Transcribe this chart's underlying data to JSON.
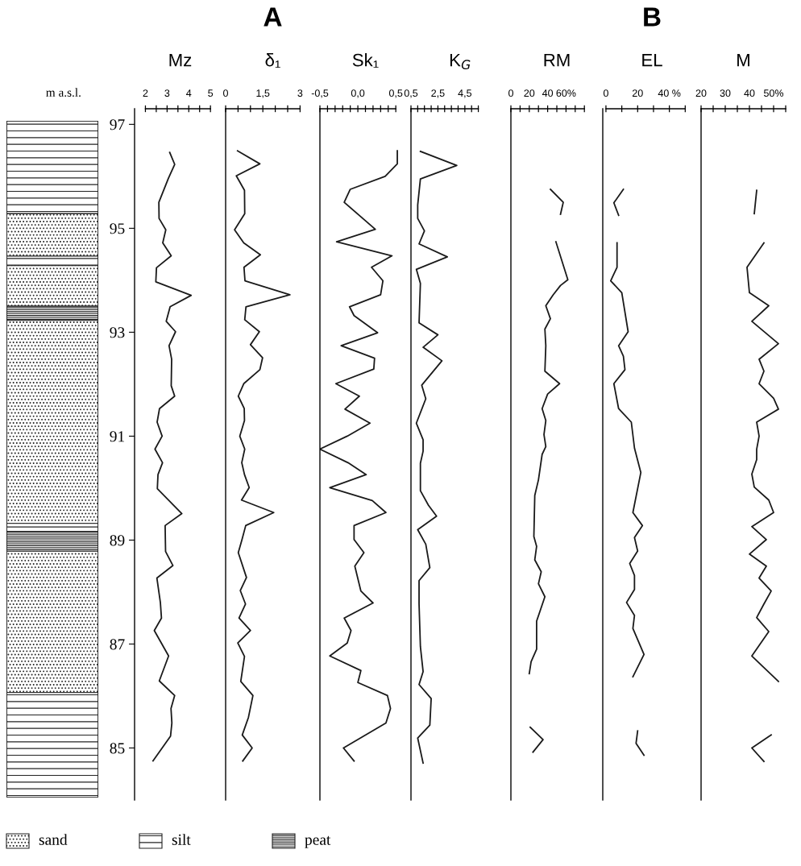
{
  "chart_data": [
    {
      "type": "other",
      "annotations": [
        "sand",
        "silt",
        "peat"
      ]
    },
    {
      "type": "line",
      "orientation": "horizontal",
      "title": "Mz",
      "ylabel": "m a.s.l.",
      "xlim": [
        1.5,
        5.7
      ],
      "xticks": [
        2,
        {
          "value": 2.5,
          "label": null
        },
        3,
        {
          "value": 3.5,
          "label": null
        },
        4,
        {
          "value": 4.5,
          "label": null
        },
        5
      ],
      "ylim": [
        84,
        97.3
      ],
      "yticks": [
        85,
        87,
        89,
        91,
        93,
        95,
        97
      ],
      "x": [
        96.46,
        96.23,
        95.96,
        95.5,
        95.19,
        94.97,
        94.72,
        94.47,
        94.24,
        93.97,
        93.71,
        93.49,
        93.21,
        93.01,
        92.74,
        92.48,
        91.97,
        91.77,
        91.53,
        91.27,
        91.0,
        90.75,
        90.49,
        90.26,
        89.99,
        89.51,
        89.28,
        89.01,
        88.78,
        88.51,
        88.27,
        87.8,
        87.5,
        87.26,
        86.77,
        86.29,
        86.01,
        85.76,
        85.48,
        85.23,
        84.75
      ],
      "series": [
        {
          "color": "#1a1a1a",
          "values": [
            3.12,
            3.35,
            3.06,
            2.62,
            2.63,
            2.94,
            2.8,
            3.19,
            2.51,
            2.48,
            4.11,
            3.14,
            2.96,
            3.39,
            3.09,
            3.21,
            3.19,
            3.35,
            2.65,
            2.54,
            2.77,
            2.44,
            2.79,
            2.58,
            2.55,
            3.68,
            2.91,
            2.92,
            2.93,
            3.27,
            2.53,
            2.69,
            2.74,
            2.41,
            3.07,
            2.64,
            3.35,
            3.18,
            3.22,
            3.16,
            2.35
          ]
        }
      ]
    },
    {
      "type": "line",
      "orientation": "horizontal",
      "title": "δ₁",
      "annotations": [
        "A"
      ],
      "tick_labels": "x",
      "xlim": [
        0,
        3.8
      ],
      "xticks": [
        0,
        {
          "value": 0.5,
          "label": null
        },
        {
          "value": 1,
          "label": null
        },
        {
          "value": 1.5,
          "label": "1,5"
        },
        {
          "value": 2,
          "label": null
        },
        {
          "value": 2.5,
          "label": null
        },
        3
      ],
      "ylim": [
        84,
        97.3
      ],
      "x": [
        96.49,
        96.24,
        96.01,
        95.73,
        95.28,
        94.97,
        94.72,
        94.49,
        94.25,
        93.99,
        93.72,
        93.49,
        93.24,
        93.01,
        92.76,
        92.51,
        92.28,
        92.01,
        91.77,
        91.53,
        91.3,
        91.0,
        90.75,
        90.49,
        90.26,
        90.01,
        89.77,
        89.53,
        89.28,
        89.01,
        88.76,
        88.28,
        88.03,
        87.77,
        87.5,
        87.26,
        87.02,
        86.76,
        86.28,
        86.01,
        85.59,
        85.25,
        85.0,
        84.75
      ],
      "series": [
        {
          "color": "#1a1a1a",
          "values": [
            0.48,
            1.38,
            0.43,
            0.76,
            0.77,
            0.36,
            0.73,
            1.4,
            0.74,
            0.78,
            2.59,
            0.82,
            0.77,
            1.36,
            1.0,
            1.49,
            1.38,
            0.73,
            0.51,
            0.75,
            0.76,
            0.57,
            0.77,
            0.65,
            0.76,
            0.95,
            0.64,
            1.94,
            0.81,
            0.66,
            0.51,
            0.84,
            0.59,
            0.8,
            0.54,
            1.0,
            0.49,
            0.76,
            0.61,
            1.1,
            0.92,
            0.67,
            1.07,
            0.69
          ]
        }
      ]
    },
    {
      "type": "line",
      "orientation": "horizontal",
      "title": "Sk₁",
      "tick_labels": "x",
      "xlim": [
        -0.5,
        0.7
      ],
      "xticks": [
        {
          "value": -0.5,
          "label": "-0,5"
        },
        {
          "value": -0.4,
          "label": null
        },
        {
          "value": -0.3,
          "label": null
        },
        {
          "value": -0.2,
          "label": null
        },
        {
          "value": -0.1,
          "label": null
        },
        {
          "value": 0,
          "label": "0,0"
        },
        {
          "value": 0.1,
          "label": null
        },
        {
          "value": 0.2,
          "label": null
        },
        {
          "value": 0.3,
          "label": null
        },
        {
          "value": 0.4,
          "label": null
        },
        {
          "value": 0.5,
          "label": "0,5"
        }
      ],
      "ylim": [
        84,
        97.3
      ],
      "x": [
        96.49,
        96.24,
        96.0,
        95.75,
        95.5,
        94.98,
        94.74,
        94.47,
        94.25,
        93.99,
        93.72,
        93.49,
        93.32,
        92.99,
        92.74,
        92.5,
        92.29,
        92.01,
        91.77,
        91.52,
        91.25,
        91.0,
        90.75,
        90.49,
        90.26,
        90.01,
        89.76,
        89.53,
        89.28,
        89.01,
        88.76,
        88.5,
        88.02,
        87.79,
        87.5,
        87.26,
        87.02,
        86.77,
        86.49,
        86.26,
        86.01,
        85.76,
        85.48,
        85.0,
        84.75
      ],
      "series": [
        {
          "color": "#1a1a1a",
          "values": [
            0.52,
            0.52,
            0.36,
            -0.1,
            -0.18,
            0.23,
            -0.28,
            0.45,
            0.18,
            0.33,
            0.3,
            -0.11,
            -0.05,
            0.26,
            -0.22,
            0.22,
            0.21,
            -0.29,
            0.02,
            -0.17,
            0.16,
            -0.14,
            -0.5,
            -0.13,
            0.11,
            -0.37,
            0.19,
            0.37,
            -0.05,
            -0.05,
            0.08,
            -0.04,
            0.04,
            0.2,
            -0.18,
            -0.09,
            -0.14,
            -0.37,
            0.04,
            0.0,
            0.39,
            0.43,
            0.37,
            -0.19,
            -0.05
          ]
        }
      ]
    },
    {
      "type": "line",
      "orientation": "horizontal",
      "title": "K$_{G}$",
      "tick_labels": "x",
      "xlim": [
        0.5,
        7.8
      ],
      "xticks": [
        {
          "value": 0.5,
          "label": "0,5"
        },
        {
          "value": 1,
          "label": null
        },
        {
          "value": 1.5,
          "label": null
        },
        {
          "value": 2,
          "label": null
        },
        {
          "value": 2.5,
          "label": "2,5"
        },
        {
          "value": 3,
          "label": null
        },
        {
          "value": 3.5,
          "label": null
        },
        {
          "value": 4,
          "label": null
        },
        {
          "value": 4.5,
          "label": "4,5"
        },
        {
          "value": 5,
          "label": null
        },
        {
          "value": 5.5,
          "label": null
        }
      ],
      "ylim": [
        84,
        97.3
      ],
      "x": [
        96.48,
        96.21,
        95.95,
        95.45,
        95.19,
        94.95,
        94.7,
        94.45,
        94.21,
        93.94,
        93.18,
        92.95,
        92.71,
        92.45,
        91.98,
        91.72,
        91.25,
        90.93,
        90.71,
        90.48,
        89.95,
        89.67,
        89.46,
        89.2,
        88.92,
        88.47,
        88.22,
        87.77,
        86.95,
        86.47,
        86.22,
        85.95,
        85.44,
        85.19,
        84.71
      ],
      "series": [
        {
          "color": "#1a1a1a",
          "values": [
            1.2,
            3.9,
            1.2,
            1.0,
            1.0,
            1.5,
            1.1,
            3.2,
            0.9,
            1.2,
            1.1,
            2.5,
            1.4,
            2.8,
            1.3,
            1.6,
            0.9,
            1.4,
            1.4,
            1.2,
            1.2,
            1.8,
            2.4,
            1.0,
            1.6,
            1.9,
            1.1,
            1.1,
            1.2,
            1.4,
            1.1,
            2.0,
            1.9,
            1.0,
            1.4
          ]
        }
      ]
    },
    {
      "type": "line",
      "orientation": "horizontal",
      "title": "RM",
      "tick_labels": "x",
      "xlim": [
        0,
        100
      ],
      "xticks": [
        0,
        {
          "value": 10,
          "label": null
        },
        20,
        {
          "value": 30,
          "label": null
        },
        40,
        {
          "value": 50,
          "label": null
        },
        {
          "value": 60,
          "label": "60%"
        },
        {
          "value": 70,
          "label": null
        },
        {
          "value": 80,
          "label": null
        }
      ],
      "ylim": [
        84,
        97.3
      ],
      "x": [
        95.75,
        95.5,
        95.27,
        95.0,
        94.74,
        94.01,
        93.9,
        93.72,
        93.51,
        93.26,
        93.06,
        92.74,
        92.25,
        92.01,
        91.81,
        91.53,
        91.3,
        91.03,
        90.8,
        90.65,
        90.16,
        89.86,
        89.07,
        88.88,
        88.62,
        88.39,
        88.16,
        87.91,
        87.44,
        86.9,
        86.66,
        86.43,
        86.0,
        85.4,
        85.16,
        84.92
      ],
      "series": [
        {
          "color": "#1a1a1a",
          "values": [
            43,
            57,
            54,
            null,
            49,
            62,
            54,
            46,
            38,
            43,
            37,
            38,
            37,
            53,
            40,
            34,
            38,
            36,
            38,
            34,
            30,
            26,
            25,
            28,
            26,
            33,
            30,
            37,
            28,
            28,
            22,
            20,
            null,
            21,
            35,
            24
          ]
        }
      ]
    },
    {
      "type": "line",
      "orientation": "horizontal",
      "title": "EL",
      "annotations": [
        "B"
      ],
      "tick_labels": "x",
      "xlim": [
        -2,
        60
      ],
      "xticks": [
        0,
        {
          "value": 10,
          "label": null
        },
        20,
        {
          "value": 30,
          "label": null
        },
        {
          "value": 40,
          "label": "40 %"
        },
        {
          "value": 50,
          "label": null
        }
      ],
      "ylim": [
        84,
        97.3
      ],
      "x": [
        95.75,
        95.49,
        95.25,
        95.0,
        94.72,
        94.25,
        93.99,
        93.76,
        93.01,
        92.74,
        92.54,
        92.28,
        92.01,
        91.53,
        91.27,
        90.77,
        90.3,
        89.53,
        89.28,
        89.05,
        88.79,
        88.55,
        88.32,
        88.05,
        87.8,
        87.55,
        87.3,
        86.8,
        86.37,
        86.0,
        85.33,
        85.09,
        84.86
      ],
      "series": [
        {
          "color": "#1a1a1a",
          "values": [
            11,
            5,
            8,
            null,
            7,
            7,
            3,
            10,
            14,
            8,
            11,
            12,
            5,
            8,
            16,
            18,
            22,
            17,
            23,
            18,
            20,
            15,
            18,
            18,
            13,
            18,
            17,
            24,
            17,
            null,
            20,
            19,
            24
          ]
        }
      ]
    },
    {
      "type": "line",
      "orientation": "horizontal",
      "title": "M",
      "tick_labels": "x",
      "xlim": [
        20,
        55
      ],
      "xticks": [
        20,
        {
          "value": 25,
          "label": null
        },
        30,
        {
          "value": 35,
          "label": null
        },
        40,
        {
          "value": 45,
          "label": null
        },
        {
          "value": 50,
          "label": "50%"
        },
        {
          "value": 55,
          "label": null
        }
      ],
      "ylim": [
        84,
        97.3
      ],
      "x": [
        95.73,
        95.28,
        95.0,
        94.72,
        94.25,
        93.76,
        93.51,
        93.21,
        92.78,
        92.48,
        92.25,
        92.01,
        91.73,
        91.52,
        91.27,
        91.0,
        90.75,
        90.55,
        90.27,
        90.02,
        89.77,
        89.53,
        89.26,
        89.01,
        88.73,
        88.5,
        88.27,
        88.02,
        87.77,
        87.51,
        87.24,
        86.77,
        86.28,
        85.6,
        85.25,
        85.0,
        84.74
      ],
      "series": [
        {
          "color": "#1a1a1a",
          "values": [
            43,
            42,
            null,
            46,
            39,
            40,
            48,
            41,
            52,
            44,
            46,
            44,
            50,
            52,
            43,
            44,
            43,
            43,
            41,
            42,
            48,
            50,
            41,
            47,
            40,
            47,
            44,
            49,
            46,
            43,
            48,
            41,
            52,
            null,
            49,
            41,
            46
          ]
        }
      ]
    }
  ]
}
